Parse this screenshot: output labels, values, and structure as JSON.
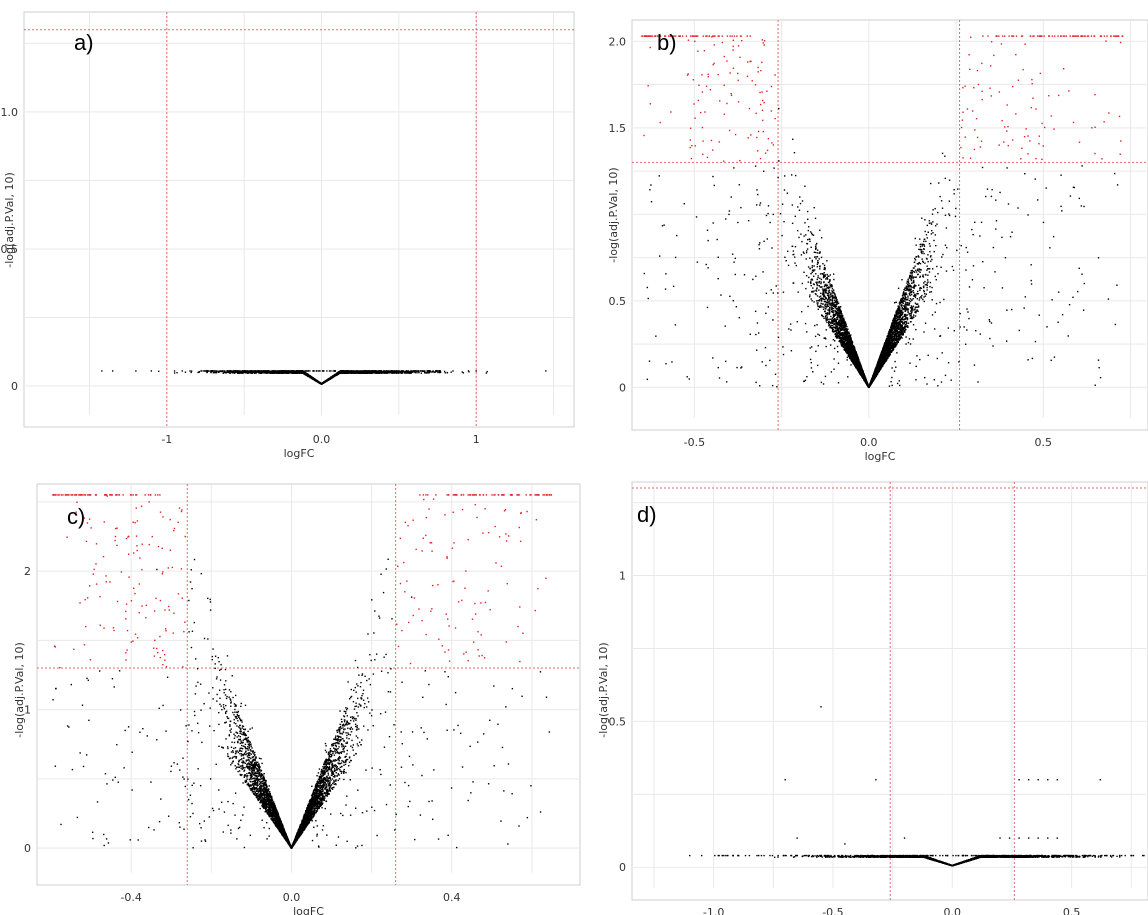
{
  "colors": {
    "background": "#ffffff",
    "panel_frame": "#cfcfcf",
    "gridline": "#e9e9e9",
    "threshold_line": "#e36b6b",
    "point_black": "#000000",
    "point_red": "#e02020"
  },
  "chart_data": [
    {
      "type": "scatter",
      "panel_label": "a)",
      "title": "",
      "xlabel": "logFC",
      "ylabel": "-log(adj.P.Val, 10)",
      "xlim": [
        -1.6,
        1.6
      ],
      "ylim": [
        -0.04,
        1.35
      ],
      "xticks": [
        -1,
        0,
        1
      ],
      "xtick_labels": [
        "-1",
        "0.0",
        "1"
      ],
      "yticks": [
        0,
        0.5,
        1
      ],
      "ytick_labels": [
        "0",
        "0.5",
        "1.0"
      ],
      "grid": true,
      "thresholds": {
        "x": [
          -1,
          1
        ],
        "y": [
          1.3
        ]
      },
      "distribution": {
        "shape": "flat",
        "width": 0.9,
        "peak": 0.055,
        "n_points": 2800,
        "outliers_x": [
          -1.42,
          -1.35,
          -1.2,
          -1.1,
          -0.95,
          -0.9,
          -0.85,
          0.85,
          0.95,
          1.0,
          1.45
        ]
      },
      "significant_red_points": []
    },
    {
      "type": "scatter",
      "panel_label": "b)",
      "title": "",
      "xlabel": "logFC",
      "ylabel": "-log(adj.P.Val, 10)",
      "xlim": [
        -0.65,
        0.8
      ],
      "ylim": [
        -0.05,
        2.1
      ],
      "xticks": [
        -0.5,
        0,
        0.5
      ],
      "xtick_labels": [
        "-0.5",
        "0.0",
        "0.5"
      ],
      "yticks": [
        0,
        0.5,
        1,
        1.5,
        2
      ],
      "ytick_labels": [
        "0",
        "0.5",
        "",
        "1.5",
        "2.0"
      ],
      "grid": true,
      "thresholds": {
        "x": [
          -0.26,
          0.26
        ],
        "y": [
          1.3
        ]
      },
      "distribution": {
        "shape": "v",
        "slope": 5.6,
        "ymax": 2.03,
        "n_points": 5200,
        "n_scatter": 700,
        "red_cutoff": 1.3
      },
      "significant_red_points": []
    },
    {
      "type": "scatter",
      "panel_label": "c)",
      "title": "",
      "xlabel": "logFC",
      "ylabel": "-log(adj.P.Val, 10)",
      "xlim": [
        -0.6,
        0.72
      ],
      "ylim": [
        -0.05,
        2.6
      ],
      "xticks": [
        -0.4,
        0,
        0.4
      ],
      "xtick_labels": [
        "-0.4",
        "0.0",
        "0.4"
      ],
      "yticks": [
        0,
        1,
        2
      ],
      "ytick_labels": [
        "0",
        "1",
        "2"
      ],
      "grid": true,
      "thresholds": {
        "x": [
          -0.26,
          0.26
        ],
        "y": [
          1.3
        ]
      },
      "distribution": {
        "shape": "v",
        "slope": 7.5,
        "ymax": 2.55,
        "n_points": 4200,
        "n_scatter": 650,
        "red_cutoff": 1.3
      },
      "significant_red_points": []
    },
    {
      "type": "scatter",
      "panel_label": "d)",
      "title": "",
      "xlabel": "logFC",
      "ylabel": "-log(adj.P.Val, 10)",
      "xlim": [
        -1.3,
        0.82
      ],
      "ylim": [
        -0.03,
        1.3
      ],
      "xticks": [
        -1.0,
        -0.5,
        0,
        0.5
      ],
      "xtick_labels": [
        "-1.0",
        "-0.5",
        "0.0",
        "0.5"
      ],
      "yticks": [
        0,
        0.5,
        1
      ],
      "ytick_labels": [
        "0",
        "0.5",
        "1"
      ],
      "grid": true,
      "thresholds": {
        "x": [
          -0.26,
          0.26
        ],
        "y": [
          1.3
        ]
      },
      "distribution": {
        "shape": "flat_asym",
        "peak": 0.04,
        "n_points": 2600,
        "outliers_x": [
          -1.1,
          -1.05,
          -0.85,
          -0.7,
          -0.55
        ],
        "extra_points": [
          [
            -0.55,
            0.55
          ],
          [
            -0.7,
            0.3
          ],
          [
            -0.32,
            0.3
          ],
          [
            0.28,
            0.3
          ],
          [
            0.32,
            0.3
          ],
          [
            0.36,
            0.3
          ],
          [
            0.4,
            0.3
          ],
          [
            0.44,
            0.3
          ],
          [
            0.62,
            0.3
          ],
          [
            0.2,
            0.1
          ],
          [
            0.24,
            0.1
          ],
          [
            0.28,
            0.1
          ],
          [
            0.32,
            0.1
          ],
          [
            0.36,
            0.1
          ],
          [
            0.4,
            0.1
          ],
          [
            0.44,
            0.1
          ],
          [
            -0.2,
            0.1
          ],
          [
            -0.65,
            0.1
          ],
          [
            -0.45,
            0.08
          ]
        ]
      },
      "significant_red_points": []
    }
  ]
}
